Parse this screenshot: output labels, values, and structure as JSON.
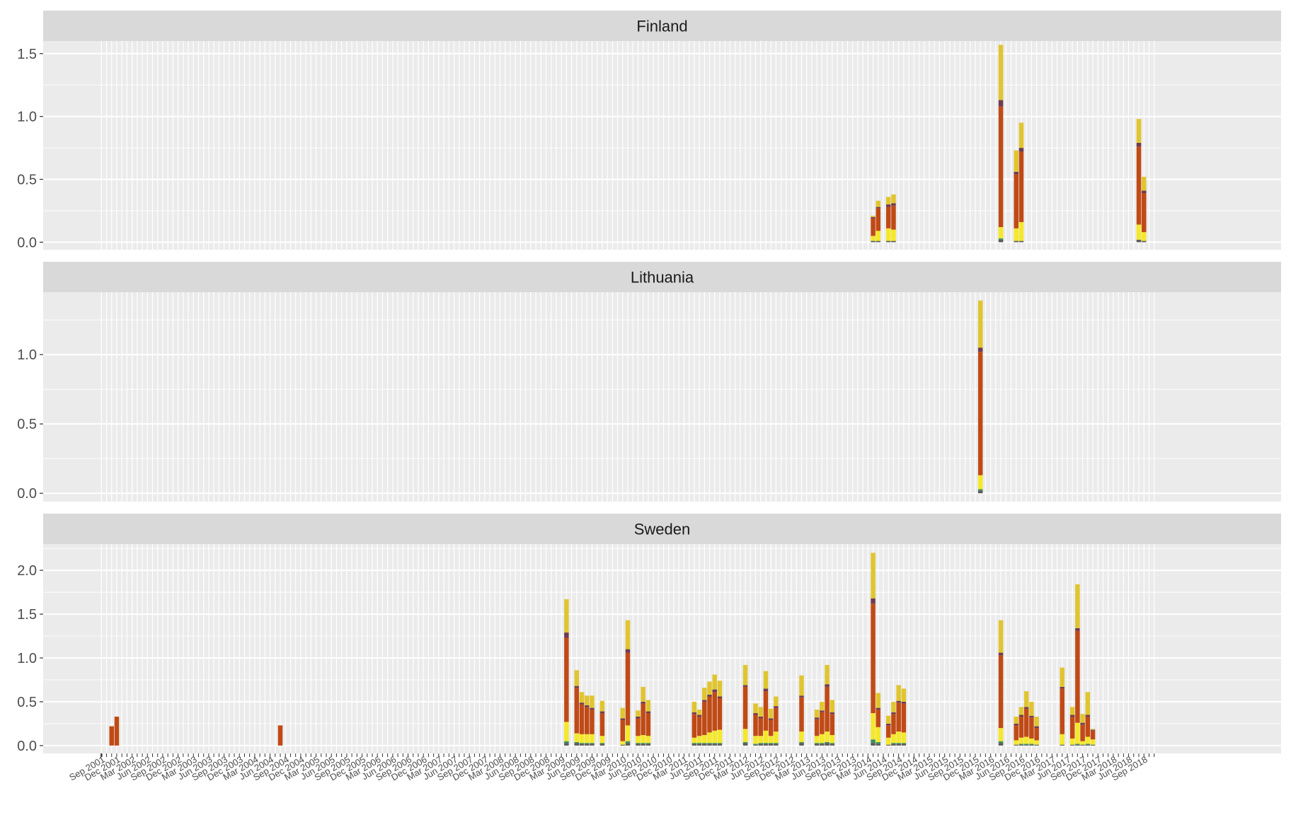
{
  "chart_data": {
    "type": "bar",
    "stacked": true,
    "facets": [
      "Finland",
      "Lithuania",
      "Sweden"
    ],
    "x_axis_labels": [
      "Sep 2001",
      "Dec 2001",
      "Mar 2002",
      "Jun 2002",
      "Sep 2002",
      "Dec 2002",
      "Mar 2003",
      "Jun 2003",
      "Sep 2003",
      "Dec 2003",
      "Mar 2004",
      "Jun 2004",
      "Sep 2004",
      "Dec 2004",
      "Mar 2005",
      "Jun 2005",
      "Sep 2005",
      "Dec 2005",
      "Mar 2006",
      "Jun 2006",
      "Sep 2006",
      "Dec 2006",
      "Mar 2007",
      "Jun 2007",
      "Sep 2007",
      "Dec 2007",
      "Mar 2008",
      "Jun 2008",
      "Sep 2008",
      "Dec 2008",
      "Mar 2009",
      "Jun 2009",
      "Sep 2009",
      "Dec 2009",
      "Mar 2010",
      "Jun 2010",
      "Sep 2010",
      "Dec 2010",
      "Mar 2011",
      "Jun 2011",
      "Sep 2011",
      "Dec 2011",
      "Mar 2012",
      "Jun 2012",
      "Sep 2012",
      "Dec 2012",
      "Mar 2013",
      "Jun 2013",
      "Sep 2013",
      "Dec 2013",
      "Mar 2014",
      "Jun 2014",
      "Sep 2014",
      "Dec 2014",
      "Mar 2015",
      "Jun 2015",
      "Sep 2015",
      "Dec 2015",
      "Mar 2016",
      "Jun 2016",
      "Sep 2016",
      "Dec 2016",
      "Mar 2017",
      "Jun 2017",
      "Sep 2017",
      "Dec 2017",
      "Mar 2018",
      "Jun 2018",
      "Sep 2018"
    ],
    "first_month": "2001-09",
    "month_count": 207,
    "stack_order": [
      "dark-gray",
      "green",
      "yellow",
      "orange",
      "purple",
      "gold"
    ],
    "colors": {
      "dark-gray": "#5a5a5a",
      "green": "#3d8f5e",
      "yellow": "#f5e82a",
      "orange": "#c04a16",
      "purple": "#6e3b52",
      "gold": "#e0c530"
    },
    "panels": [
      {
        "name": "Finland",
        "ylim": [
          -0.06,
          1.6
        ],
        "yticks": [
          0.0,
          0.5,
          1.0,
          1.5
        ],
        "ytick_labels": [
          "0.0",
          "0.5",
          "1.0",
          "1.5"
        ],
        "bars": [
          {
            "date": "2014-04",
            "values": [
              0.01,
              0.0,
              0.04,
              0.14,
              0.01,
              0.01
            ]
          },
          {
            "date": "2014-05",
            "values": [
              0.01,
              0.0,
              0.08,
              0.18,
              0.01,
              0.05
            ]
          },
          {
            "date": "2014-07",
            "values": [
              0.01,
              0.0,
              0.1,
              0.17,
              0.02,
              0.06
            ]
          },
          {
            "date": "2014-08",
            "values": [
              0.01,
              0.0,
              0.09,
              0.19,
              0.02,
              0.07
            ]
          },
          {
            "date": "2016-05",
            "values": [
              0.02,
              0.01,
              0.09,
              0.96,
              0.05,
              0.44
            ]
          },
          {
            "date": "2016-08",
            "values": [
              0.01,
              0.0,
              0.1,
              0.43,
              0.02,
              0.17
            ]
          },
          {
            "date": "2016-09",
            "values": [
              0.01,
              0.0,
              0.15,
              0.56,
              0.03,
              0.2
            ]
          },
          {
            "date": "2018-08",
            "values": [
              0.02,
              0.0,
              0.12,
              0.62,
              0.03,
              0.19
            ]
          },
          {
            "date": "2018-09",
            "values": [
              0.01,
              0.0,
              0.07,
              0.31,
              0.02,
              0.11
            ]
          }
        ]
      },
      {
        "name": "Lithuania",
        "ylim": [
          -0.06,
          1.45
        ],
        "yticks": [
          0.0,
          0.5,
          1.0
        ],
        "ytick_labels": [
          "0.0",
          "0.5",
          "1.0"
        ],
        "bars": [
          {
            "date": "2016-01",
            "values": [
              0.02,
              0.01,
              0.1,
              0.89,
              0.03,
              0.34
            ]
          }
        ]
      },
      {
        "name": "Sweden",
        "ylim": [
          -0.09,
          2.3
        ],
        "yticks": [
          0.0,
          0.5,
          1.0,
          1.5,
          2.0
        ],
        "ytick_labels": [
          "0.0",
          "0.5",
          "1.0",
          "1.5",
          "2.0"
        ],
        "bars": [
          {
            "date": "2001-11",
            "values": [
              0,
              0,
              0,
              0.22,
              0,
              0
            ]
          },
          {
            "date": "2001-12",
            "values": [
              0,
              0,
              0,
              0.33,
              0,
              0
            ]
          },
          {
            "date": "2004-08",
            "values": [
              0,
              0,
              0,
              0.23,
              0,
              0
            ]
          },
          {
            "date": "2009-04",
            "values": [
              0.03,
              0.02,
              0.22,
              0.96,
              0.06,
              0.38
            ]
          },
          {
            "date": "2009-06",
            "values": [
              0.03,
              0.01,
              0.1,
              0.52,
              0.02,
              0.18
            ]
          },
          {
            "date": "2009-07",
            "values": [
              0.02,
              0.01,
              0.1,
              0.34,
              0.02,
              0.12
            ]
          },
          {
            "date": "2009-08",
            "values": [
              0.02,
              0.01,
              0.1,
              0.31,
              0.02,
              0.11
            ]
          },
          {
            "date": "2009-09",
            "values": [
              0.02,
              0.01,
              0.1,
              0.28,
              0.02,
              0.14
            ]
          },
          {
            "date": "2009-11",
            "values": [
              0.02,
              0.01,
              0.08,
              0.26,
              0.02,
              0.12
            ]
          },
          {
            "date": "2010-03",
            "values": [
              0.01,
              0.0,
              0.04,
              0.24,
              0.02,
              0.12
            ]
          },
          {
            "date": "2010-04",
            "values": [
              0.03,
              0.02,
              0.18,
              0.83,
              0.04,
              0.33
            ]
          },
          {
            "date": "2010-06",
            "values": [
              0.02,
              0.01,
              0.08,
              0.2,
              0.02,
              0.07
            ]
          },
          {
            "date": "2010-07",
            "values": [
              0.02,
              0.01,
              0.09,
              0.36,
              0.02,
              0.17
            ]
          },
          {
            "date": "2010-08",
            "values": [
              0.02,
              0.01,
              0.08,
              0.26,
              0.02,
              0.13
            ]
          },
          {
            "date": "2011-05",
            "values": [
              0.02,
              0.01,
              0.06,
              0.27,
              0.02,
              0.12
            ]
          },
          {
            "date": "2011-06",
            "values": [
              0.02,
              0.01,
              0.08,
              0.22,
              0.02,
              0.06
            ]
          },
          {
            "date": "2011-07",
            "values": [
              0.02,
              0.01,
              0.09,
              0.38,
              0.02,
              0.14
            ]
          },
          {
            "date": "2011-08",
            "values": [
              0.02,
              0.01,
              0.12,
              0.41,
              0.02,
              0.15
            ]
          },
          {
            "date": "2011-09",
            "values": [
              0.02,
              0.01,
              0.14,
              0.44,
              0.03,
              0.17
            ]
          },
          {
            "date": "2011-10",
            "values": [
              0.02,
              0.01,
              0.15,
              0.36,
              0.02,
              0.18
            ]
          },
          {
            "date": "2012-03",
            "values": [
              0.03,
              0.01,
              0.15,
              0.48,
              0.02,
              0.23
            ]
          },
          {
            "date": "2012-05",
            "values": [
              0.01,
              0.01,
              0.09,
              0.24,
              0.02,
              0.11
            ]
          },
          {
            "date": "2012-06",
            "values": [
              0.02,
              0.01,
              0.08,
              0.2,
              0.02,
              0.11
            ]
          },
          {
            "date": "2012-07",
            "values": [
              0.02,
              0.01,
              0.14,
              0.45,
              0.03,
              0.2
            ]
          },
          {
            "date": "2012-08",
            "values": [
              0.02,
              0.01,
              0.08,
              0.18,
              0.02,
              0.11
            ]
          },
          {
            "date": "2012-09",
            "values": [
              0.02,
              0.01,
              0.13,
              0.27,
              0.02,
              0.11
            ]
          },
          {
            "date": "2013-02",
            "values": [
              0.03,
              0.01,
              0.12,
              0.39,
              0.02,
              0.23
            ]
          },
          {
            "date": "2013-05",
            "values": [
              0.02,
              0.01,
              0.08,
              0.19,
              0.02,
              0.09
            ]
          },
          {
            "date": "2013-06",
            "values": [
              0.02,
              0.01,
              0.1,
              0.25,
              0.02,
              0.1
            ]
          },
          {
            "date": "2013-07",
            "values": [
              0.03,
              0.01,
              0.12,
              0.51,
              0.03,
              0.22
            ]
          },
          {
            "date": "2013-08",
            "values": [
              0.02,
              0.01,
              0.09,
              0.24,
              0.02,
              0.14
            ]
          },
          {
            "date": "2014-04",
            "values": [
              0.03,
              0.04,
              0.3,
              1.25,
              0.06,
              0.52
            ]
          },
          {
            "date": "2014-05",
            "values": [
              0.02,
              0.02,
              0.17,
              0.2,
              0.02,
              0.17
            ]
          },
          {
            "date": "2014-07",
            "values": [
              0.01,
              0.0,
              0.08,
              0.14,
              0.02,
              0.09
            ]
          },
          {
            "date": "2014-08",
            "values": [
              0.02,
              0.01,
              0.1,
              0.23,
              0.02,
              0.12
            ]
          },
          {
            "date": "2014-09",
            "values": [
              0.02,
              0.01,
              0.13,
              0.33,
              0.02,
              0.18
            ]
          },
          {
            "date": "2014-10",
            "values": [
              0.02,
              0.01,
              0.12,
              0.33,
              0.02,
              0.15
            ]
          },
          {
            "date": "2016-05",
            "values": [
              0.03,
              0.02,
              0.15,
              0.83,
              0.03,
              0.37
            ]
          },
          {
            "date": "2016-08",
            "values": [
              0.01,
              0.0,
              0.05,
              0.17,
              0.02,
              0.08
            ]
          },
          {
            "date": "2016-09",
            "values": [
              0.01,
              0.01,
              0.07,
              0.24,
              0.02,
              0.09
            ]
          },
          {
            "date": "2016-10",
            "values": [
              0.01,
              0.01,
              0.08,
              0.32,
              0.02,
              0.18
            ]
          },
          {
            "date": "2016-11",
            "values": [
              0.01,
              0.01,
              0.06,
              0.24,
              0.02,
              0.16
            ]
          },
          {
            "date": "2016-12",
            "values": [
              0.01,
              0.0,
              0.05,
              0.14,
              0.02,
              0.11
            ]
          },
          {
            "date": "2017-05",
            "values": [
              0.01,
              0.0,
              0.12,
              0.52,
              0.02,
              0.22
            ]
          },
          {
            "date": "2017-07",
            "values": [
              0.01,
              0.0,
              0.07,
              0.25,
              0.02,
              0.09
            ]
          },
          {
            "date": "2017-08",
            "values": [
              0.01,
              0.01,
              0.24,
              1.05,
              0.03,
              0.5
            ]
          },
          {
            "date": "2017-09",
            "values": [
              0.01,
              0.0,
              0.04,
              0.19,
              0.02,
              0.1
            ]
          },
          {
            "date": "2017-10",
            "values": [
              0.01,
              0.01,
              0.08,
              0.23,
              0.02,
              0.26
            ]
          },
          {
            "date": "2017-11",
            "values": [
              0.01,
              0.0,
              0.06,
              0.1,
              0.01,
              0.01
            ]
          }
        ]
      }
    ]
  }
}
